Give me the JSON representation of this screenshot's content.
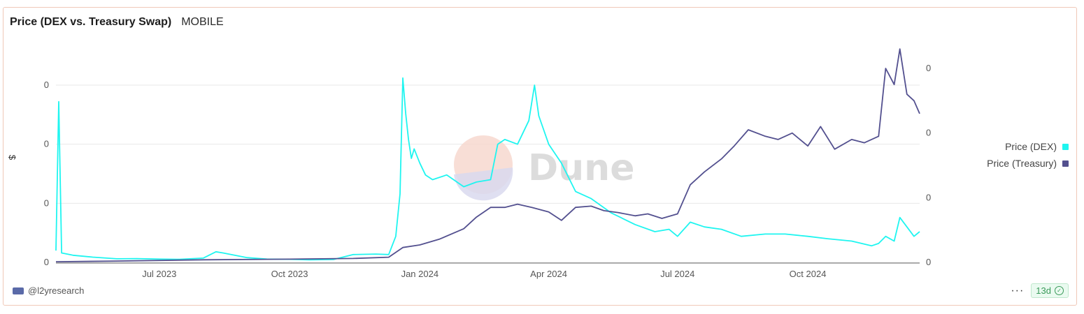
{
  "header": {
    "title": "Price (DEX vs. Treasury Swap)",
    "subtitle": "MOBILE"
  },
  "footer": {
    "author": "@l2yresearch",
    "more_label": "···",
    "age_badge": "13d"
  },
  "watermark": {
    "text": "Dune"
  },
  "colors": {
    "dex": "#1ff5f0",
    "treasury": "#53508f",
    "grid": "#e8e8e8",
    "axis_text": "#555555"
  },
  "chart_data": {
    "type": "line",
    "title": "Price (DEX vs. Treasury Swap)",
    "subtitle": "MOBILE",
    "ylabel_left": "$",
    "x_ticks": [
      {
        "date": "2023-07-01",
        "label": "Jul 2023"
      },
      {
        "date": "2023-10-01",
        "label": "Oct 2023"
      },
      {
        "date": "2024-01-01",
        "label": "Jan 2024"
      },
      {
        "date": "2024-04-01",
        "label": "Apr 2024"
      },
      {
        "date": "2024-07-01",
        "label": "Jul 2024"
      },
      {
        "date": "2024-10-01",
        "label": "Oct 2024"
      }
    ],
    "x_range": [
      "2023-04-19",
      "2024-12-19"
    ],
    "y_left_ticks": [
      {
        "value": 0,
        "label": "0"
      },
      {
        "value": 0.0025,
        "label": "0"
      },
      {
        "value": 0.005,
        "label": "0"
      },
      {
        "value": 0.0075,
        "label": "0"
      }
    ],
    "y_left_range": [
      0,
      0.0075
    ],
    "y_right_ticks": [
      {
        "value": 0,
        "label": "0"
      },
      {
        "value": 0.001,
        "label": "0"
      },
      {
        "value": 0.002,
        "label": "0"
      },
      {
        "value": 0.003,
        "label": "0"
      }
    ],
    "y_right_range": [
      0,
      0.003
    ],
    "grid": true,
    "legend_position": "right",
    "series": [
      {
        "name": "Price (DEX)",
        "axis": "left",
        "x": [
          "2023-04-19",
          "2023-04-21",
          "2023-04-23",
          "2023-05-01",
          "2023-05-15",
          "2023-06-01",
          "2023-06-15",
          "2023-07-01",
          "2023-07-15",
          "2023-08-01",
          "2023-08-10",
          "2023-08-15",
          "2023-09-01",
          "2023-09-15",
          "2023-10-01",
          "2023-10-15",
          "2023-11-01",
          "2023-11-15",
          "2023-12-01",
          "2023-12-10",
          "2023-12-15",
          "2023-12-18",
          "2023-12-20",
          "2023-12-22",
          "2023-12-24",
          "2023-12-26",
          "2023-12-28",
          "2024-01-01",
          "2024-01-05",
          "2024-01-10",
          "2024-01-20",
          "2024-02-01",
          "2024-02-10",
          "2024-02-20",
          "2024-02-25",
          "2024-03-01",
          "2024-03-10",
          "2024-03-18",
          "2024-03-22",
          "2024-03-25",
          "2024-04-01",
          "2024-04-10",
          "2024-04-20",
          "2024-05-01",
          "2024-05-15",
          "2024-06-01",
          "2024-06-15",
          "2024-06-25",
          "2024-07-01",
          "2024-07-10",
          "2024-07-20",
          "2024-08-01",
          "2024-08-15",
          "2024-09-01",
          "2024-09-15",
          "2024-10-01",
          "2024-10-15",
          "2024-11-01",
          "2024-11-15",
          "2024-11-20",
          "2024-11-25",
          "2024-12-01",
          "2024-12-05",
          "2024-12-10",
          "2024-12-15",
          "2024-12-19"
        ],
        "y": [
          0.0005,
          0.0068,
          0.0004,
          0.0003,
          0.00022,
          0.00015,
          0.00016,
          0.00014,
          0.00013,
          0.00018,
          0.00045,
          0.0004,
          0.0002,
          0.00014,
          0.00013,
          0.00011,
          0.00012,
          0.00033,
          0.00035,
          0.00033,
          0.0011,
          0.0029,
          0.0078,
          0.0063,
          0.0052,
          0.0044,
          0.0048,
          0.0042,
          0.0037,
          0.0035,
          0.0037,
          0.0032,
          0.0034,
          0.0035,
          0.005,
          0.0052,
          0.005,
          0.006,
          0.0075,
          0.0062,
          0.005,
          0.0042,
          0.003,
          0.0027,
          0.0021,
          0.0016,
          0.0013,
          0.0014,
          0.0011,
          0.0017,
          0.0015,
          0.0014,
          0.0011,
          0.0012,
          0.0012,
          0.0011,
          0.001,
          0.0009,
          0.0007,
          0.0008,
          0.0011,
          0.0009,
          0.0019,
          0.0015,
          0.0011,
          0.0013
        ]
      },
      {
        "name": "Price (Treasury)",
        "axis": "right",
        "x": [
          "2023-04-19",
          "2023-06-01",
          "2023-08-01",
          "2023-10-01",
          "2023-11-15",
          "2023-12-10",
          "2023-12-20",
          "2024-01-01",
          "2024-01-15",
          "2024-02-01",
          "2024-02-10",
          "2024-02-20",
          "2024-03-01",
          "2024-03-10",
          "2024-03-20",
          "2024-04-01",
          "2024-04-10",
          "2024-04-20",
          "2024-05-01",
          "2024-05-10",
          "2024-05-20",
          "2024-06-01",
          "2024-06-10",
          "2024-06-20",
          "2024-07-01",
          "2024-07-10",
          "2024-07-20",
          "2024-08-01",
          "2024-08-10",
          "2024-08-20",
          "2024-09-01",
          "2024-09-10",
          "2024-09-20",
          "2024-10-01",
          "2024-10-10",
          "2024-10-20",
          "2024-11-01",
          "2024-11-10",
          "2024-11-20",
          "2024-11-25",
          "2024-12-01",
          "2024-12-05",
          "2024-12-10",
          "2024-12-15",
          "2024-12-19"
        ],
        "y": [
          1e-05,
          2e-05,
          4e-05,
          5e-05,
          6e-05,
          8e-05,
          0.00023,
          0.00027,
          0.00036,
          0.00052,
          0.0007,
          0.00085,
          0.00085,
          0.0009,
          0.00085,
          0.00078,
          0.00065,
          0.00085,
          0.00087,
          0.0008,
          0.00077,
          0.00072,
          0.00075,
          0.00068,
          0.00075,
          0.0012,
          0.0014,
          0.0016,
          0.0018,
          0.00205,
          0.00195,
          0.0019,
          0.002,
          0.0018,
          0.0021,
          0.00175,
          0.0019,
          0.00185,
          0.00195,
          0.003,
          0.00275,
          0.0033,
          0.0026,
          0.0025,
          0.0023
        ]
      }
    ]
  }
}
